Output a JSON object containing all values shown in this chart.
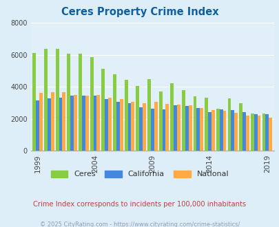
{
  "title": "Ceres Property Crime Index",
  "title_color": "#1060a0",
  "subtitle": "Crime Index corresponds to incidents per 100,000 inhabitants",
  "subtitle_color": "#c04040",
  "footer": "© 2025 CityRating.com - https://www.cityrating.com/crime-statistics/",
  "footer_color": "#9999bb",
  "years": [
    1999,
    2000,
    2001,
    2002,
    2003,
    2004,
    2005,
    2006,
    2007,
    2008,
    2009,
    2010,
    2011,
    2012,
    2013,
    2014,
    2015,
    2016,
    2017,
    2018,
    2019
  ],
  "ceres": [
    6100,
    6380,
    6380,
    6070,
    6070,
    5870,
    5130,
    4770,
    4420,
    4060,
    4500,
    3720,
    4220,
    3800,
    3400,
    3330,
    2640,
    3290,
    2960,
    2320,
    2330
  ],
  "california": [
    3150,
    3300,
    3340,
    3460,
    3470,
    3440,
    3250,
    3070,
    2960,
    2720,
    2640,
    2600,
    2840,
    2810,
    2680,
    2430,
    2590,
    2570,
    2440,
    2300,
    2310
  ],
  "national": [
    3640,
    3660,
    3650,
    3500,
    3440,
    3480,
    3310,
    3240,
    3060,
    2990,
    3050,
    2940,
    2890,
    2860,
    2680,
    2570,
    2490,
    2390,
    2200,
    2200,
    2100
  ],
  "ceres_color": "#88cc44",
  "california_color": "#4488dd",
  "national_color": "#ffaa44",
  "ylim": [
    0,
    8000
  ],
  "yticks": [
    0,
    2000,
    4000,
    6000,
    8000
  ],
  "xticks": [
    1999,
    2004,
    2009,
    2014,
    2019
  ],
  "fig_bg": "#ddeef8",
  "plot_bg": "#e0eff8",
  "grid_color": "#ffffff"
}
